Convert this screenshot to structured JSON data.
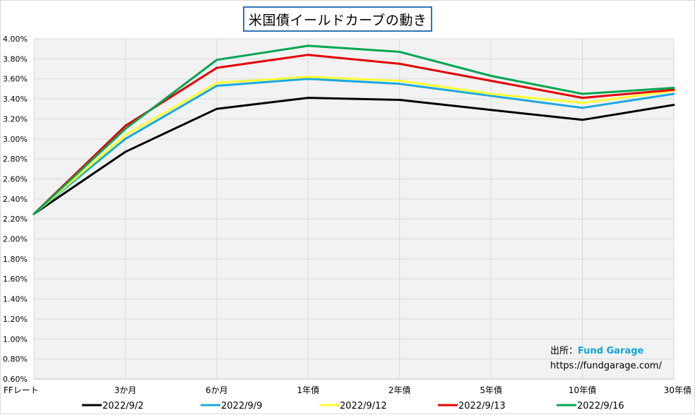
{
  "chart_data": {
    "type": "line",
    "title": "米国債イールドカーブの動き",
    "categories": [
      "FFレート",
      "3か月",
      "6か月",
      "1年債",
      "2年債",
      "5年債",
      "10年債",
      "30年債"
    ],
    "ylim": [
      0.6,
      4.0
    ],
    "yticks": [
      "0.60%",
      "0.80%",
      "1.00%",
      "1.20%",
      "1.40%",
      "1.60%",
      "1.80%",
      "2.00%",
      "2.20%",
      "2.40%",
      "2.60%",
      "2.80%",
      "3.00%",
      "3.20%",
      "3.40%",
      "3.60%",
      "3.80%",
      "4.00%"
    ],
    "grid": true,
    "legend_position": "bottom",
    "series": [
      {
        "name": "2022/9/2",
        "color": "#000000",
        "values": [
          2.25,
          2.87,
          3.3,
          3.41,
          3.39,
          3.29,
          3.19,
          3.34
        ]
      },
      {
        "name": "2022/9/9",
        "color": "#1ba8df",
        "values": [
          2.25,
          3.0,
          3.53,
          3.6,
          3.55,
          3.43,
          3.31,
          3.45
        ]
      },
      {
        "name": "2022/9/12",
        "color": "#ffff33",
        "values": [
          2.25,
          3.04,
          3.56,
          3.62,
          3.58,
          3.45,
          3.36,
          3.48
        ]
      },
      {
        "name": "2022/9/13",
        "color": "#e60000",
        "values": [
          2.25,
          3.13,
          3.71,
          3.84,
          3.75,
          3.58,
          3.41,
          3.49
        ]
      },
      {
        "name": "2022/9/16",
        "color": "#00a651",
        "values": [
          2.25,
          3.1,
          3.79,
          3.93,
          3.87,
          3.63,
          3.45,
          3.51
        ]
      }
    ]
  },
  "source": {
    "label": "出所：",
    "brand": "Fund Garage",
    "url": "https://fundgarage.com/"
  }
}
